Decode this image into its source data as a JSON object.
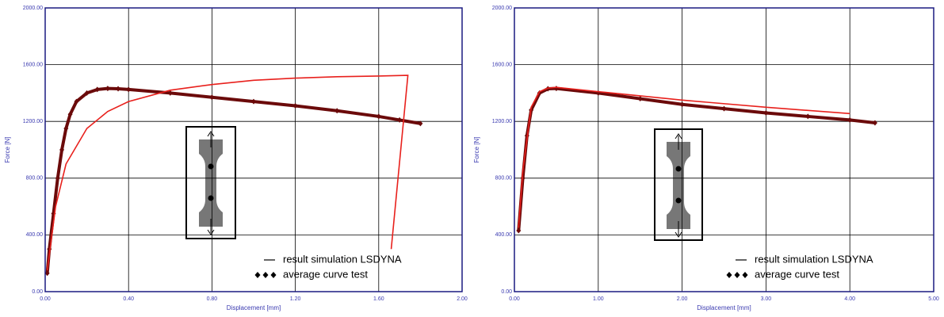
{
  "chart_data": [
    {
      "type": "line",
      "xlabel": "Displacement [mm]",
      "ylabel": "Force [N]",
      "xlim": [
        0,
        2
      ],
      "ylim": [
        0,
        2000
      ],
      "xticks": [
        {
          "value": 0,
          "label": "0.00"
        },
        {
          "value": 0.4,
          "label": "0.40"
        },
        {
          "value": 0.8,
          "label": "0.80"
        },
        {
          "value": 1.2,
          "label": "1.20"
        },
        {
          "value": 1.6,
          "label": "1.60"
        },
        {
          "value": 2,
          "label": "2.00"
        }
      ],
      "yticks": [
        {
          "value": 0,
          "label": "0.00"
        },
        {
          "value": 400,
          "label": "400.00"
        },
        {
          "value": 800,
          "label": "800.00"
        },
        {
          "value": 1200,
          "label": "1200.00"
        },
        {
          "value": 1600,
          "label": "1600.00"
        },
        {
          "value": 2000,
          "label": "2000.00"
        }
      ],
      "grid": true,
      "legend": "lower right",
      "series": [
        {
          "name": "result simulation LSDYNA",
          "color": "#e8201c",
          "marker": "none",
          "x": [
            0.01,
            0.05,
            0.1,
            0.2,
            0.3,
            0.4,
            0.6,
            0.8,
            1.0,
            1.2,
            1.4,
            1.6,
            1.74,
            1.66
          ],
          "values": [
            150,
            600,
            900,
            1150,
            1270,
            1340,
            1420,
            1460,
            1490,
            1505,
            1515,
            1520,
            1525,
            300
          ]
        },
        {
          "name": "average curve test",
          "color": "#6b0a0a",
          "marker": "diamond",
          "x": [
            0.01,
            0.02,
            0.04,
            0.06,
            0.08,
            0.1,
            0.12,
            0.15,
            0.2,
            0.25,
            0.3,
            0.35,
            0.4,
            0.6,
            0.8,
            1.0,
            1.2,
            1.4,
            1.6,
            1.7,
            1.8
          ],
          "values": [
            130,
            300,
            550,
            800,
            1000,
            1150,
            1250,
            1340,
            1400,
            1425,
            1432,
            1430,
            1425,
            1400,
            1370,
            1340,
            1310,
            1275,
            1235,
            1210,
            1185
          ]
        }
      ]
    },
    {
      "type": "line",
      "xlabel": "Displacement [mm]",
      "ylabel": "Force [N]",
      "xlim": [
        0,
        5
      ],
      "ylim": [
        0,
        2000
      ],
      "xticks": [
        {
          "value": 0,
          "label": "0.00"
        },
        {
          "value": 1,
          "label": "1.00"
        },
        {
          "value": 2,
          "label": "2.00"
        },
        {
          "value": 3,
          "label": "3.00"
        },
        {
          "value": 4,
          "label": "4.00"
        },
        {
          "value": 5,
          "label": "5.00"
        }
      ],
      "yticks": [
        {
          "value": 0,
          "label": "0.00"
        },
        {
          "value": 400,
          "label": "400.00"
        },
        {
          "value": 800,
          "label": "800.00"
        },
        {
          "value": 1200,
          "label": "1200.00"
        },
        {
          "value": 1600,
          "label": "1600.00"
        },
        {
          "value": 2000,
          "label": "2000.00"
        }
      ],
      "grid": true,
      "legend": "lower right",
      "series": [
        {
          "name": "result simulation LSDYNA",
          "color": "#e8201c",
          "marker": "none",
          "x": [
            0.05,
            0.1,
            0.2,
            0.3,
            0.4,
            0.5,
            1.0,
            2.0,
            3.0,
            4.0
          ],
          "values": [
            450,
            850,
            1300,
            1410,
            1435,
            1440,
            1410,
            1350,
            1300,
            1255
          ]
        },
        {
          "name": "average curve test",
          "color": "#6b0a0a",
          "marker": "diamond",
          "x": [
            0.05,
            0.1,
            0.15,
            0.2,
            0.3,
            0.4,
            0.5,
            1.0,
            1.5,
            2.0,
            2.5,
            3.0,
            3.5,
            4.0,
            4.3
          ],
          "values": [
            430,
            800,
            1100,
            1280,
            1400,
            1430,
            1432,
            1400,
            1360,
            1320,
            1290,
            1260,
            1235,
            1210,
            1190
          ]
        }
      ]
    }
  ]
}
